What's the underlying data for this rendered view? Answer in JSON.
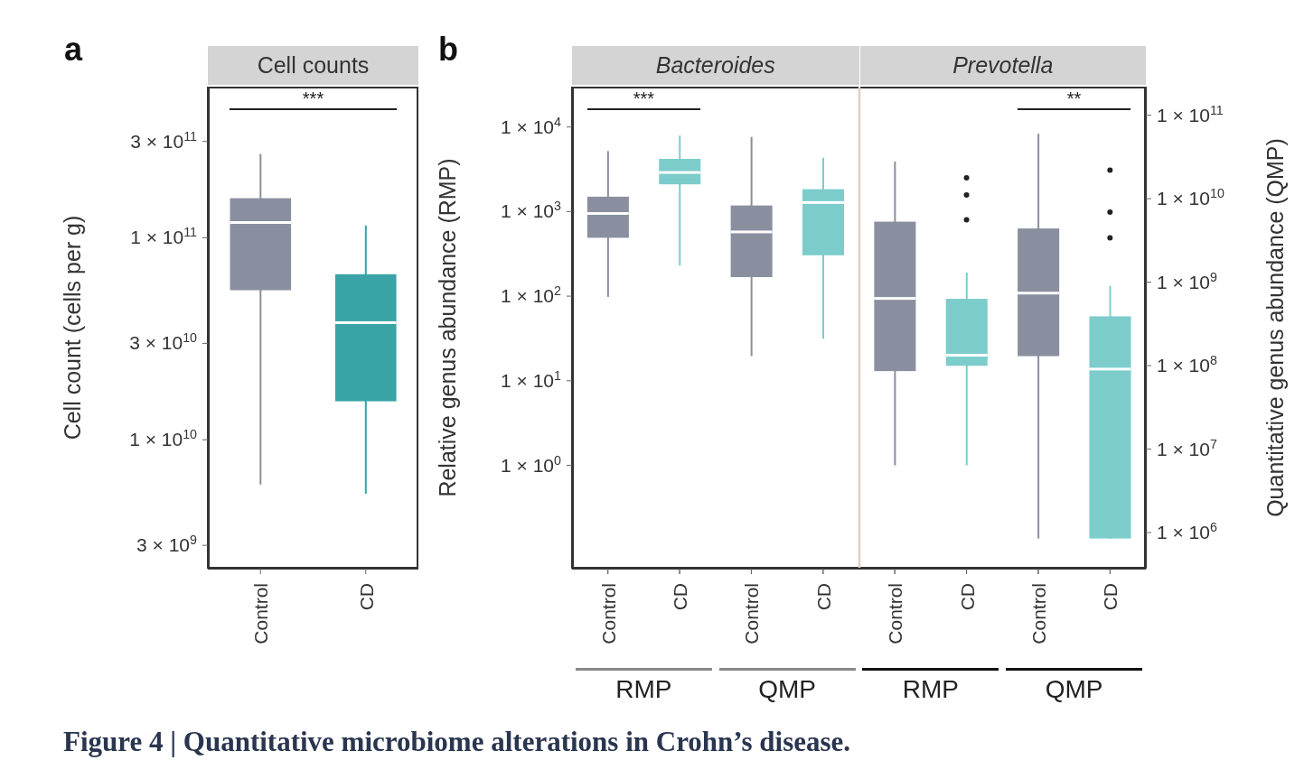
{
  "chart_data": [
    {
      "type": "box",
      "title": "Cell counts",
      "ylabel": "Cell count (cells per g)",
      "categories": [
        "Control",
        "CD"
      ],
      "log": true,
      "grid": false,
      "legend": false,
      "ylim": [
        2300000000.0,
        560000000000.0
      ],
      "yticks": [
        {
          "value": 3000000000.0,
          "label": "3 × 10$^{9}$"
        },
        {
          "value": 10000000000.0,
          "label": "1 × 10$^{10}$"
        },
        {
          "value": 30000000000.0,
          "label": "3 × 10$^{10}$"
        },
        {
          "value": 100000000000.0,
          "label": "1 × 10$^{11}$"
        },
        {
          "value": 300000000000.0,
          "label": "3 × 10$^{11}$"
        }
      ],
      "series": [
        {
          "colors": [
            "#8a8fa0",
            "#3aa3a6"
          ],
          "boxes": [
            {
              "low": 6000000000.0,
              "q1": 55000000000.0,
              "median": 119000000000.0,
              "q3": 157000000000.0,
              "high": 260000000000.0
            },
            {
              "low": 5400000000.0,
              "q1": 15500000000.0,
              "median": 38000000000.0,
              "q3": 66000000000.0,
              "high": 115000000000.0
            }
          ]
        }
      ],
      "annotations": [
        "a",
        "***"
      ]
    },
    {
      "type": "box",
      "ylabel": "Relative genus abundance (RMP)",
      "categories": [
        "Control",
        "CD",
        "Control",
        "CD",
        "Control",
        "CD",
        "Control",
        "CD"
      ],
      "log": true,
      "grid": false,
      "legend": false,
      "ylim": [
        0.06,
        30000
      ],
      "yticks": [
        {
          "value": 1,
          "label": "1 × 10$^{0}$"
        },
        {
          "value": 10,
          "label": "1 × 10$^{1}$"
        },
        {
          "value": 100,
          "label": "1 × 10$^{2}$"
        },
        {
          "value": 1000,
          "label": "1 × 10$^{3}$"
        },
        {
          "value": 10000,
          "label": "1 × 10$^{4}$"
        }
      ],
      "series": [
        {
          "name": "RMP",
          "colors": [
            "#8a8fa0",
            "#7dcccc",
            null,
            null,
            "#8a8fa0",
            "#7dcccc",
            null,
            null
          ],
          "boxes": [
            {
              "low": 98,
              "q1": 490,
              "median": 950,
              "q3": 1500,
              "high": 5200
            },
            {
              "low": 230,
              "q1": 2100,
              "median": 2900,
              "q3": 4200,
              "high": 7900
            },
            null,
            null,
            {
              "low": 1,
              "q1": 13,
              "median": 94,
              "q3": 760,
              "high": 3900
            },
            {
              "low": 1,
              "q1": 15,
              "median": 20,
              "q3": 93,
              "high": 190,
              "outliers": [
                2500,
                1570,
                800
              ]
            },
            null,
            null
          ]
        }
      ],
      "annotations": [
        "b",
        "Bacteroides",
        "Prevotella",
        "***",
        "Figure 4 | Quantitative microbiome alterations in Crohn’s disease."
      ]
    },
    {
      "type": "box",
      "y2label": "Quantitative genus abundance (QMP)",
      "categories": [
        null,
        null,
        null,
        null,
        null,
        null,
        null,
        null
      ],
      "log": "y2",
      "grid": false,
      "legend": false,
      "y2lim": [
        370000.0,
        220000000000.0
      ],
      "y2ticks": [
        {
          "value": 1000000.0,
          "label": "1 × 10$^{6}$"
        },
        {
          "value": 10000000.0,
          "label": "1 × 10$^{7}$"
        },
        {
          "value": 100000000.0,
          "label": "1 × 10$^{8}$"
        },
        {
          "value": 1000000000.0,
          "label": "1 × 10$^{9}$"
        },
        {
          "value": 10000000000.0,
          "label": "1 × 10$^{10}$"
        },
        {
          "value": 100000000000.0,
          "label": "1 × 10$^{11}$"
        }
      ],
      "series": [
        {
          "name": "QMP",
          "axis": "y2",
          "colors": [
            null,
            null,
            "#8a8fa0",
            "#7dcccc",
            null,
            null,
            "#8a8fa0",
            "#7dcccc"
          ],
          "boxes": [
            null,
            null,
            {
              "low": 130000000.0,
              "q1": 1150000000.0,
              "median": 4000000000.0,
              "q3": 8300000000.0,
              "high": 55000000000.0
            },
            {
              "low": 210000000.0,
              "q1": 2100000000.0,
              "median": 9000000000.0,
              "q3": 13000000000.0,
              "high": 31000000000.0
            },
            null,
            null,
            {
              "low": 850000.0,
              "q1": 130000000.0,
              "median": 740000000.0,
              "q3": 4400000000.0,
              "high": 60000000000.0
            },
            {
              "low": 850000.0,
              "q1": 850000.0,
              "median": 91000000.0,
              "q3": 390000000.0,
              "high": 900000000.0,
              "outliers": [
                22000000000.0,
                6900000000.0,
                3400000000.0
              ]
            }
          ]
        }
      ],
      "annotations": [
        "**"
      ]
    }
  ]
}
